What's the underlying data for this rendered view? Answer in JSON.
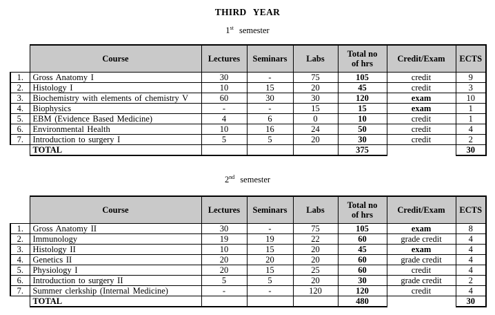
{
  "document": {
    "title": "THIRD YEAR"
  },
  "table_columns": {
    "course": "Course",
    "lectures": "Lectures",
    "seminars": "Seminars",
    "labs": "Labs",
    "total_hrs": "Total no\nof hrs",
    "credit_exam": "Credit/Exam",
    "ects": "ECTS"
  },
  "semesters": [
    {
      "heading": {
        "number": "1",
        "ordinal": "st",
        "word": "semester"
      },
      "rows": [
        {
          "no": "1.",
          "course": "Gross Anatomy I",
          "lectures": "30",
          "seminars": "-",
          "labs": "75",
          "total_hrs": "105",
          "credit_exam": "credit",
          "credit_bold": false,
          "ects": "9"
        },
        {
          "no": "2.",
          "course": "Histology I",
          "lectures": "10",
          "seminars": "15",
          "labs": "20",
          "total_hrs": "45",
          "credit_exam": "credit",
          "credit_bold": false,
          "ects": "3"
        },
        {
          "no": "3.",
          "course": "Biochemistry with elements of chemistry V",
          "lectures": "60",
          "seminars": "30",
          "labs": "30",
          "total_hrs": "120",
          "credit_exam": "exam",
          "credit_bold": true,
          "ects": "10"
        },
        {
          "no": "4.",
          "course": "Biophysics",
          "lectures": "-",
          "seminars": "-",
          "labs": "15",
          "total_hrs": "15",
          "credit_exam": "exam",
          "credit_bold": true,
          "ects": "1"
        },
        {
          "no": "5.",
          "course": "EBM (Evidence Based Medicine)",
          "lectures": "4",
          "seminars": "6",
          "labs": "0",
          "total_hrs": "10",
          "credit_exam": "credit",
          "credit_bold": false,
          "ects": "1"
        },
        {
          "no": "6.",
          "course": "Environmental Health",
          "lectures": "10",
          "seminars": "16",
          "labs": "24",
          "total_hrs": "50",
          "credit_exam": "credit",
          "credit_bold": false,
          "ects": "4"
        },
        {
          "no": "7.",
          "course": "Introduction to surgery I",
          "lectures": "5",
          "seminars": "5",
          "labs": "20",
          "total_hrs": "30",
          "credit_exam": "credit",
          "credit_bold": false,
          "ects": "2"
        }
      ],
      "total_row": {
        "label": "TOTAL",
        "total_hrs": "375",
        "ects": "30"
      }
    },
    {
      "heading": {
        "number": "2",
        "ordinal": "nd",
        "word": "semester"
      },
      "rows": [
        {
          "no": "1.",
          "course": "Gross Anatomy II",
          "lectures": "30",
          "seminars": "-",
          "labs": "75",
          "total_hrs": "105",
          "credit_exam": "exam",
          "credit_bold": true,
          "ects": "8"
        },
        {
          "no": "2.",
          "course": "Immunology",
          "lectures": "19",
          "seminars": "19",
          "labs": "22",
          "total_hrs": "60",
          "credit_exam": "grade credit",
          "credit_bold": false,
          "ects": "4"
        },
        {
          "no": "3.",
          "course": "Histology II",
          "lectures": "10",
          "seminars": "15",
          "labs": "20",
          "total_hrs": "45",
          "credit_exam": "exam",
          "credit_bold": true,
          "ects": "4"
        },
        {
          "no": "4.",
          "course": "Genetics II",
          "lectures": "20",
          "seminars": "20",
          "labs": "20",
          "total_hrs": "60",
          "credit_exam": "grade credit",
          "credit_bold": false,
          "ects": "4"
        },
        {
          "no": "5.",
          "course": "Physiology I",
          "lectures": "20",
          "seminars": "15",
          "labs": "25",
          "total_hrs": "60",
          "credit_exam": "credit",
          "credit_bold": false,
          "ects": "4"
        },
        {
          "no": "6.",
          "course": "Introduction to surgery II",
          "lectures": "5",
          "seminars": "5",
          "labs": "20",
          "total_hrs": "30",
          "credit_exam": "grade credit",
          "credit_bold": false,
          "ects": "2"
        },
        {
          "no": "7.",
          "course": "Summer clerkship (Internal Medicine)",
          "lectures": "-",
          "seminars": "-",
          "labs": "120",
          "total_hrs": "120",
          "credit_exam": "credit",
          "credit_bold": false,
          "ects": "4"
        }
      ],
      "total_row": {
        "label": "TOTAL",
        "total_hrs": "480",
        "ects": "30"
      }
    }
  ]
}
